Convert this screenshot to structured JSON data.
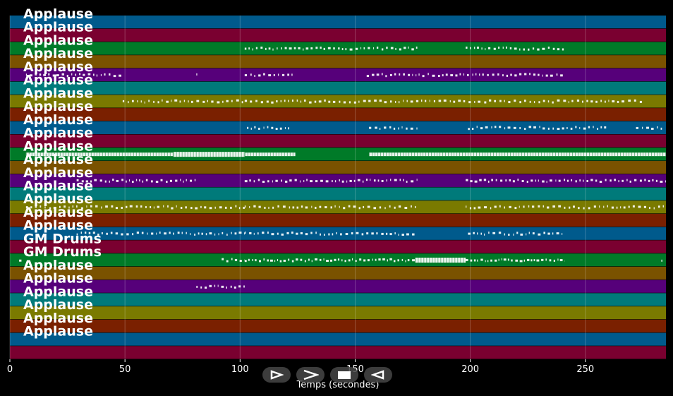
{
  "chart_data": {
    "type": "piano-roll",
    "title": "",
    "xlabel": "Temps (secondes)",
    "ylabel": "",
    "xlim": [
      0,
      285
    ],
    "xticks": [
      0,
      50,
      100,
      150,
      200,
      250
    ],
    "grid": true,
    "tracks": [
      {
        "name": "Applause",
        "color": "#005a8c",
        "notes": []
      },
      {
        "name": "Applause",
        "color": "#7a0030",
        "notes": []
      },
      {
        "name": "Applause",
        "color": "#007a28",
        "notes": [
          [
            102,
            177,
            0.55
          ],
          [
            198,
            241,
            0.55
          ]
        ]
      },
      {
        "name": "Applause",
        "color": "#7a5200",
        "notes": []
      },
      {
        "name": "Applause",
        "color": "#56007a",
        "notes": [
          [
            7,
            49,
            0.5
          ],
          [
            81,
            81.6,
            0.1
          ],
          [
            102,
            124,
            0.5
          ],
          [
            155,
            241,
            0.5
          ]
        ]
      },
      {
        "name": "Applause",
        "color": "#007a7a",
        "notes": []
      },
      {
        "name": "Applause",
        "color": "#7a7a00",
        "notes": [
          [
            49,
            102,
            0.45
          ],
          [
            102,
            174,
            0.45
          ],
          [
            174,
            276,
            0.45
          ]
        ]
      },
      {
        "name": "Applause",
        "color": "#7a2000",
        "notes": []
      },
      {
        "name": "Applause",
        "color": "#005a8c",
        "notes": [
          [
            103,
            122,
            0.5
          ],
          [
            156,
            177,
            0.5
          ],
          [
            199,
            260,
            0.5
          ],
          [
            272,
            284,
            0.5
          ]
        ]
      },
      {
        "name": "Applause",
        "color": "#7a0030",
        "notes": []
      },
      {
        "name": "Applause",
        "color": "#007a28",
        "notes": [
          [
            7,
            71,
            0.9
          ],
          [
            71,
            102,
            1.0
          ],
          [
            102,
            124,
            0.9
          ],
          [
            156,
            285,
            0.9
          ]
        ]
      },
      {
        "name": "Applause",
        "color": "#7a5200",
        "notes": []
      },
      {
        "name": "Applause",
        "color": "#56007a",
        "notes": [
          [
            29,
            81,
            0.55
          ],
          [
            102,
            177,
            0.55
          ],
          [
            198,
            285,
            0.55
          ]
        ]
      },
      {
        "name": "Applause",
        "color": "#007a7a",
        "notes": []
      },
      {
        "name": "Applause",
        "color": "#7a7a00",
        "notes": [
          [
            7,
            102,
            0.45
          ],
          [
            102,
            177,
            0.45
          ],
          [
            198,
            285,
            0.45
          ]
        ]
      },
      {
        "name": "Applause",
        "color": "#7a2000",
        "notes": []
      },
      {
        "name": "Applause",
        "color": "#005a8c",
        "notes": [
          [
            29,
            102,
            0.5
          ],
          [
            102,
            176,
            0.5
          ],
          [
            199,
            240,
            0.5
          ]
        ]
      },
      {
        "name": "GM Drums",
        "color": "#7a0030",
        "notes": []
      },
      {
        "name": "GM Drums",
        "color": "#007a28",
        "notes": [
          [
            4,
            6,
            0.3
          ],
          [
            92,
            102,
            0.45
          ],
          [
            102,
            176,
            0.7
          ],
          [
            176,
            198,
            1.0
          ],
          [
            198,
            241,
            0.7
          ],
          [
            283,
            284,
            0.3
          ]
        ]
      },
      {
        "name": "Applause",
        "color": "#7a5200",
        "notes": []
      },
      {
        "name": "Applause",
        "color": "#56007a",
        "notes": [
          [
            81,
            102,
            0.5
          ]
        ]
      },
      {
        "name": "Applause",
        "color": "#007a7a",
        "notes": []
      },
      {
        "name": "Applause",
        "color": "#7a7a00",
        "notes": []
      },
      {
        "name": "Applause",
        "color": "#7a2000",
        "notes": []
      },
      {
        "name": "Applause",
        "color": "#005a8c",
        "notes": []
      },
      {
        "name": "",
        "color": "#7a0030",
        "notes": []
      }
    ]
  },
  "player": {
    "buttons": [
      {
        "name": "play-outline-button"
      },
      {
        "name": "forward-button"
      },
      {
        "name": "stop-button"
      },
      {
        "name": "rewind-button"
      }
    ]
  }
}
